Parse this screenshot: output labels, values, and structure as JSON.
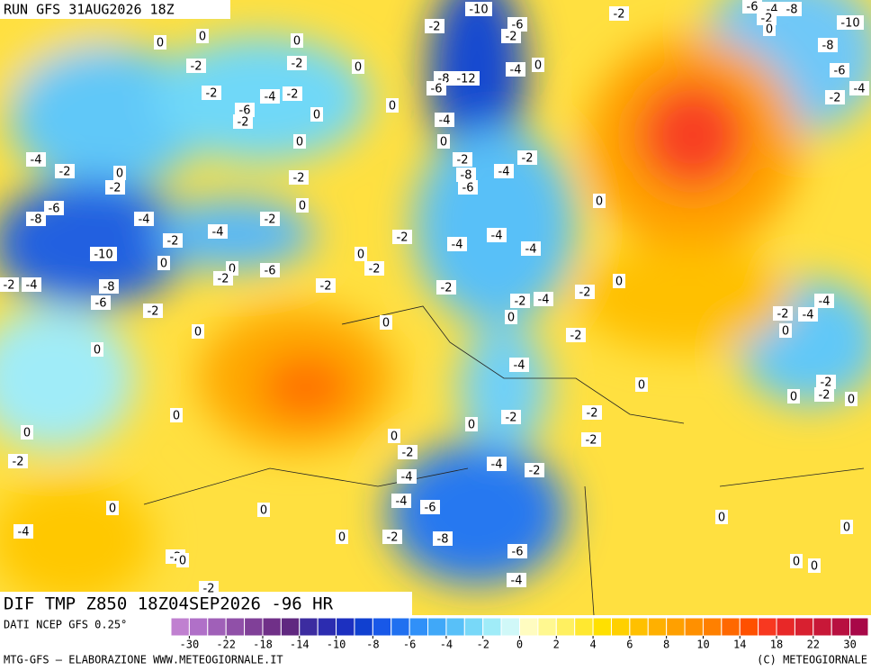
{
  "header": {
    "run": "RUN GFS 31AUG2026 18Z"
  },
  "map": {
    "title": "DIF TMP Z850 18Z04SEP2026 -96 HR",
    "contour_labels": [
      -10,
      -6,
      -2,
      -2,
      -2,
      -6,
      -4,
      -8,
      -2,
      0,
      -10,
      -8,
      -6,
      -2,
      -4,
      0,
      0,
      0,
      -2,
      -2,
      0,
      -2,
      -6,
      -4,
      -2,
      -2,
      0,
      0,
      -8,
      -6,
      -12,
      -4,
      0,
      -4,
      0,
      -2,
      -4,
      -2,
      -8,
      -6,
      0,
      -4,
      -2,
      0,
      -2,
      -2,
      0,
      0,
      -8,
      -6,
      -4,
      -2,
      -4,
      -2,
      -10,
      0,
      0,
      -2,
      -6,
      -2,
      -4,
      -8,
      -6,
      -2,
      0,
      -2,
      -4,
      -4,
      -4,
      0,
      -2,
      -2,
      -2,
      0,
      -2,
      -2,
      -4,
      0,
      0,
      -2,
      -4,
      -2,
      -4,
      0,
      0,
      -4,
      0,
      -2,
      -2,
      0,
      0,
      -2,
      -2,
      0,
      0,
      0,
      0,
      -2,
      -2,
      -4,
      -2,
      -2,
      -4,
      -4,
      -6,
      0,
      0,
      -8,
      -2,
      0,
      -6,
      0,
      0,
      -4,
      -2,
      0,
      0,
      0,
      -4,
      -2
    ]
  },
  "footer": {
    "source": "DATI NCEP GFS 0.25°",
    "credit": "MTG-GFS — ELABORAZIONE WWW.METEOGIORNALE.IT",
    "copyright": "(C) METEOGIORNALE"
  },
  "colorbar": {
    "labels": [
      -30,
      -22,
      -18,
      -14,
      -10,
      -8,
      -6,
      -4,
      -2,
      0,
      2,
      4,
      6,
      8,
      10,
      14,
      18,
      22,
      30
    ],
    "colors": [
      "#c080d0",
      "#b070c8",
      "#a060b8",
      "#9050a8",
      "#804098",
      "#703088",
      "#602880",
      "#3c2ca0",
      "#2c2cb0",
      "#1c30c0",
      "#1040d0",
      "#1858e8",
      "#2070f0",
      "#3090f8",
      "#40a8f8",
      "#58c0f8",
      "#78d8f8",
      "#a0ecf8",
      "#d0f8f8",
      "#fffcc0",
      "#fff890",
      "#fff060",
      "#ffe830",
      "#ffe000",
      "#ffd000",
      "#ffc000",
      "#ffb000",
      "#ffa000",
      "#ff9000",
      "#ff8000",
      "#ff6800",
      "#ff5000",
      "#f83820",
      "#e82828",
      "#d82030",
      "#c81838",
      "#b81040",
      "#a80848"
    ]
  }
}
